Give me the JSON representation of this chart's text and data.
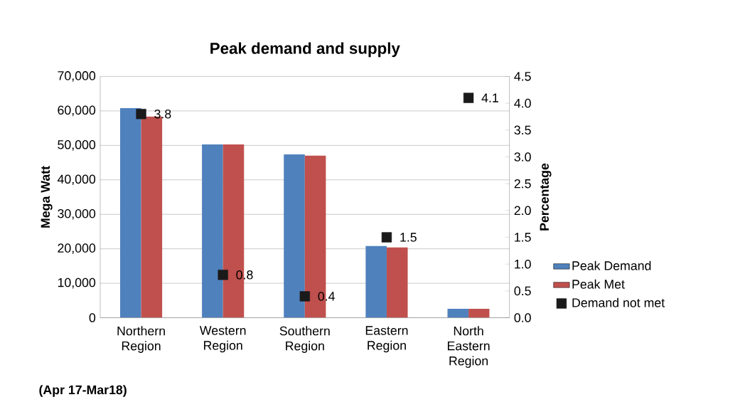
{
  "chart_data": {
    "type": "bar",
    "title": "Peak demand and supply",
    "ylabel": "Mega Watt",
    "y2label": "Percentage",
    "annotations": [
      "(Apr 17-Mar18)"
    ],
    "categories": [
      "Northern Region",
      "Western Region",
      "Southern Region",
      "Eastern Region",
      "North Eastern Region"
    ],
    "series": [
      {
        "name": "Peak Demand",
        "color": "#4f81bd",
        "values": [
          60850,
          50300,
          47400,
          20800,
          2600
        ]
      },
      {
        "name": "Peak Met",
        "color": "#c0504d",
        "values": [
          58400,
          50300,
          47000,
          20400,
          2600
        ]
      },
      {
        "name": "Demand not met",
        "type": "scatter",
        "axis": "y2",
        "color": "#1a1a1a",
        "marker": "square",
        "data_labels": true,
        "values": [
          3.8,
          0.8,
          0.4,
          1.5,
          4.1
        ]
      }
    ],
    "ylim": [
      0,
      70000
    ],
    "yticks": [
      {
        "value": 0,
        "label": "0"
      },
      {
        "value": 10000,
        "label": "10,000"
      },
      {
        "value": 20000,
        "label": "20,000"
      },
      {
        "value": 30000,
        "label": "30,000"
      },
      {
        "value": 40000,
        "label": "40,000"
      },
      {
        "value": 50000,
        "label": "50,000"
      },
      {
        "value": 60000,
        "label": "60,000"
      },
      {
        "value": 70000,
        "label": "70,000"
      }
    ],
    "y2lim": [
      0,
      4.5
    ],
    "y2ticks": [
      {
        "value": 0,
        "label": "0.0"
      },
      {
        "value": 0.5,
        "label": "0.5"
      },
      {
        "value": 1,
        "label": "1.0"
      },
      {
        "value": 1.5,
        "label": "1.5"
      },
      {
        "value": 2,
        "label": "2.0"
      },
      {
        "value": 2.5,
        "label": "2.5"
      },
      {
        "value": 3,
        "label": "3.0"
      },
      {
        "value": 3.5,
        "label": "3.5"
      },
      {
        "value": 4,
        "label": "4.0"
      },
      {
        "value": 4.5,
        "label": "4.5"
      }
    ],
    "grid": "y",
    "legend": "right"
  }
}
